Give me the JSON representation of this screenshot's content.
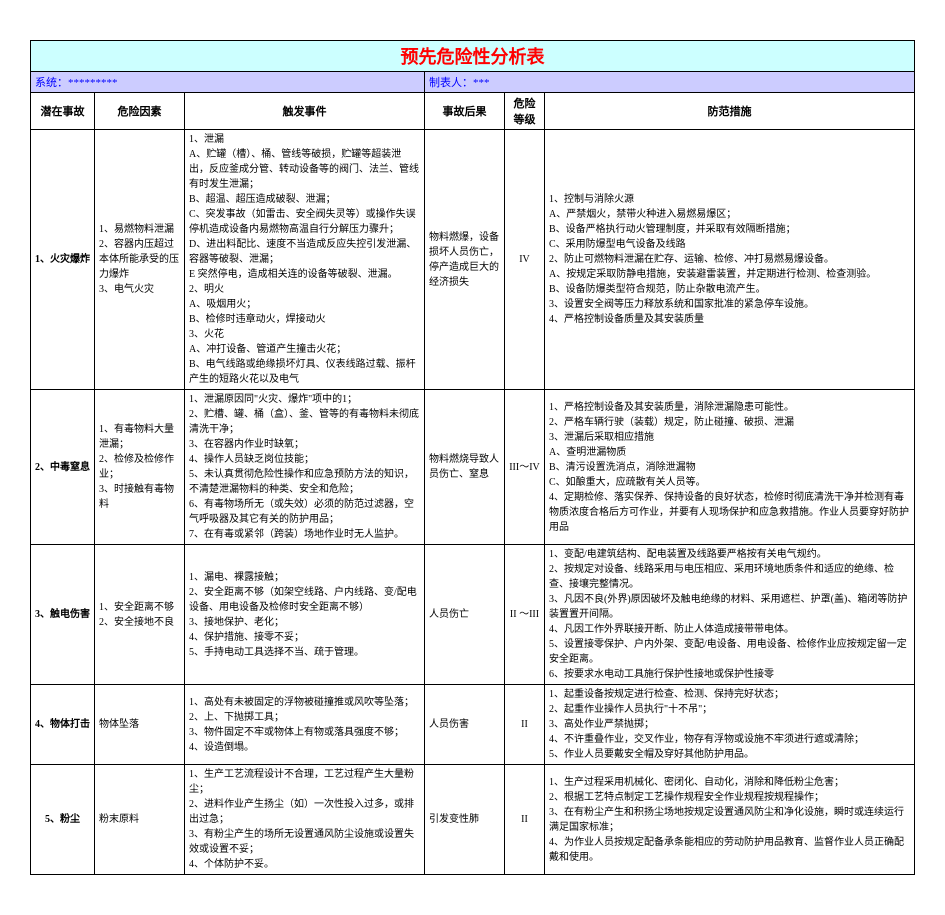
{
  "title": "预先危险性分析表",
  "meta": {
    "system_label": "系统：",
    "system_value": "*********",
    "author_label": "制表人：",
    "author_value": "***"
  },
  "columns": {
    "accident": "潜在事故",
    "cause": "危险因素",
    "trigger": "触发事件",
    "consequence": "事故后果",
    "level": "危险等级",
    "measure": "防范措施"
  },
  "rows": [
    {
      "idx": "1、火灾爆炸",
      "cause": "1、易燃物料泄漏\n2、容器内压超过本体所能承受的压力爆炸\n3、电气火灾",
      "trigger": "1、泄漏\nA、贮罐（槽）、桶、管线等破损，贮罐等超装泄出，反应釜成分管、转动设备等的阀门、法兰、管线有时发生泄漏；\nB、超温、超压造成破裂、泄漏；\nC、突发事故（如雷击、安全阀失灵等）或操作失误停机造成设备内易燃物高温自行分解压力骤升；\nD、进出料配比、速度不当造成反应失控引发泄漏、容器等破裂、泄漏；\nE 突然停电，造成相关连的设备等破裂、泄漏。\n2、明火\nA、吸烟用火；\nB、检修时违章动火，焊接动火\n3、火花\nA、冲打设备、管道产生撞击火花；\nB、电气线路或绝缘损坏灯具、仪表线路过载、振杆产生的短路火花以及电气",
      "consequence": "物料燃爆，设备损坏人员伤亡，停产造成巨大的经济损失",
      "level": "IV",
      "measure": "1、控制与消除火源\nA、严禁烟火，禁带火种进入易燃易爆区；\nB、设备严格执行动火管理制度，并采取有效隔断措施；\nC、采用防爆型电气设备及线路\n2、防止可燃物料泄漏在贮存、运输、检修、冲打易燃易爆设备。\nA、按规定采取防静电措施，安装避雷装置，并定期进行检测、检查测验。\nB、设备防爆类型符合规范，防止杂散电流产生。\n3、设置安全阀等压力释放系统和国家批准的紧急停车设施。\n4、严格控制设备质量及其安装质量"
    },
    {
      "idx": "2、中毒窒息",
      "cause": "1、有毒物料大量泄漏；\n2、检修及检修作业；\n3、时接触有毒物料",
      "trigger": "1、泄漏原因同\"火灾、爆炸\"项中的1；\n2、贮槽、罐、桶（盒）、釜、管等的有毒物料未彻底清洗干净；\n3、在容器内作业时缺氧；\n4、操作人员缺乏岗位技能；\n5、未认真贯彻危险性操作和应急预防方法的知识，不清楚泄漏物料的种类、安全和危险；\n6、有毒物场所无（或失效）必须的防范过滤器，空气呼吸器及其它有关的防护用品；\n7、在有毒或紧邻（跨装）场地作业时无人监护。",
      "consequence": "物料燃烧导致人员伤亡、窒息",
      "level": "III～IV",
      "measure": "1、严格控制设备及其安装质量，消除泄漏隐患可能性。\n2、严格车辆行驶（装载）规定，防止碰撞、破损、泄漏\n3、泄漏后采取相应措施\nA、查明泄漏物质\nB、清污设置洗消点，消除泄漏物\nC、如酿重大，应疏散有关人员等。\n4、定期检修、落实保养、保持设备的良好状态，检修时彻底清洗干净并检测有毒物质浓度合格后方可作业，并要有人现场保护和应急救措施。作业人员要穿好防护用品"
    },
    {
      "idx": "3、触电伤害",
      "cause": "1、安全距离不够\n2、安全接地不良",
      "trigger": "1、漏电、裸露接触；\n2、安全距离不够（如架空线路、户内线路、变/配电设备、用电设备及检修时安全距离不够）\n3、接地保护、老化；\n4、保护措施、接零不妥；\n5、手持电动工具选择不当、疏于管理。",
      "consequence": "人员伤亡",
      "level": "II ～III",
      "measure": "1、变配/电建筑结构、配电装置及线路要严格按有关电气规约。\n2、按规定对设备、线路采用与电压相应、采用环境地质条件和适应的绝缘、检查、接壤完整情况。\n3、凡因不良(外界)原因破坏及触电绝缘的材料、采用遮栏、护罩(盖)、箱闭等防护装置置开间隔。\n4、凡因工作外界联接开断、防止人体造成接带带电体。\n5、设置接零保护、户内外架、变配/电设备、用电设备、检修作业应按规定留一定安全距离。\n6、按要求水电动工具施行保护性接地或保护性接零"
    },
    {
      "idx": "4、物体打击",
      "cause": "物体坠落",
      "trigger": "1、高处有未被固定的浮物被碰撞推或风吹等坠落；\n2、上、下抛掷工具；\n3、物件固定不牢或物体上有物或落具强度不够；\n4、设造倒塌。",
      "consequence": "人员伤害",
      "level": "II",
      "measure": "1、起重设备按规定进行检查、检测、保持完好状态；\n2、起重作业操作人员执行\"十不吊\"；\n3、高处作业严禁抛掷；\n4、不许重叠作业，交叉作业，物存有浮物或设施不牢须进行遮或清除；\n5、作业人员要戴安全帽及穿好其他防护用品。"
    },
    {
      "idx": "5、粉尘",
      "cause": "粉末原料",
      "trigger": "1、生产工艺流程设计不合理，工艺过程产生大量粉尘；\n2、进料作业产生扬尘（如）一次性投入过多，或排出过急；\n3、有粉尘产生的场所无设置通风防尘设施或设置失效或设置不妥；\n4、个体防护不妥。",
      "consequence": "引发变性肺",
      "level": "II",
      "measure": "1、生产过程采用机械化、密闭化、自动化，消除和降低粉尘危害；\n2、根据工艺特点制定工艺操作规程安全作业规程按规程操作；\n3、在有粉尘产生和积扬尘场地按规定设置通风防尘和净化设施，瞬时或连续运行满足国家标准；\n4、为作业人员按规定配备承条能相应的劳动防护用品教育、监督作业人员正确配戴和使用。"
    }
  ]
}
